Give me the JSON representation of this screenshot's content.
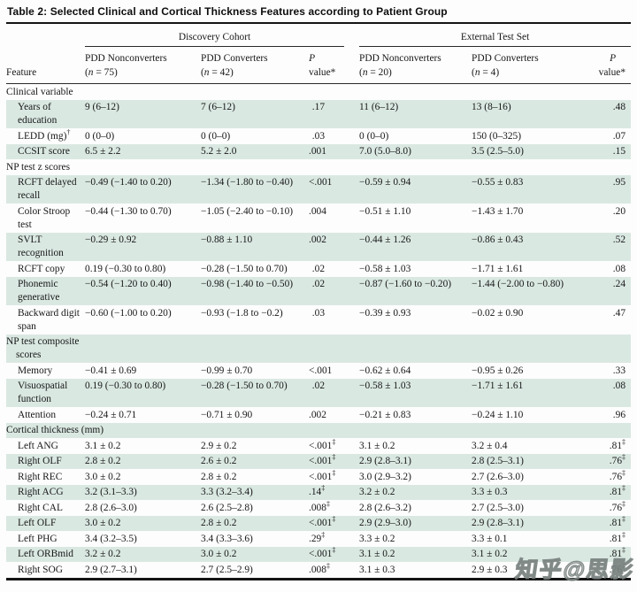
{
  "title": "Table 2: Selected Clinical and Cortical Thickness Features according to Patient Group",
  "watermark": "知乎@思影",
  "colors": {
    "row_shade": "#dae8e2",
    "rule": "#141414",
    "text": "#171717",
    "watermark_outline": "#737d7a"
  },
  "header": {
    "feature": "Feature",
    "groups": [
      "Discovery Cohort",
      "External Test Set"
    ],
    "cols": [
      {
        "name": "PDD Nonconverters",
        "pre": "(",
        "nvar": "n",
        "post": " = 75)"
      },
      {
        "name": "PDD Converters",
        "pre": "(",
        "nvar": "n",
        "post": " = 42)"
      },
      {
        "name": "PDD Nonconverters",
        "pre": "(",
        "nvar": "n",
        "post": " = 20)"
      },
      {
        "name": "PDD Converters",
        "pre": "(",
        "nvar": "n",
        "post": " = 4)"
      }
    ],
    "p": {
      "line1": "P",
      "line2": "value*"
    }
  },
  "table": {
    "rows": [
      {
        "kind": "section",
        "shaded": false,
        "label": "Clinical variable"
      },
      {
        "kind": "data",
        "shaded": true,
        "label": "Years of education",
        "cells": [
          "9 (6–12)",
          "7 (6–12)",
          ".17",
          "11 (6–12)",
          "13 (8–16)",
          ".48"
        ]
      },
      {
        "kind": "data",
        "shaded": false,
        "label": "LEDD (mg)†",
        "cells": [
          "0 (0–0)",
          "0 (0–0)",
          ".03",
          "0 (0–0)",
          "150 (0–325)",
          ".07"
        ]
      },
      {
        "kind": "data",
        "shaded": true,
        "label": "CCSIT score",
        "cells": [
          "6.5 ± 2.2",
          "5.2 ± 2.0",
          ".001",
          "7.0 (5.0–8.0)",
          "3.5 (2.5–5.0)",
          ".15"
        ]
      },
      {
        "kind": "section",
        "shaded": false,
        "label": "NP test z scores"
      },
      {
        "kind": "data",
        "shaded": true,
        "label": "RCFT delayed recall",
        "cells": [
          "−0.49 (−1.40 to 0.20)",
          "−1.34 (−1.80 to −0.40)",
          "<.001",
          "−0.59 ± 0.94",
          "−0.55 ± 0.83",
          ".95"
        ]
      },
      {
        "kind": "data",
        "shaded": false,
        "label": "Color Stroop test",
        "cells": [
          "−0.44 (−1.30 to 0.70)",
          "−1.05 (−2.40 to −0.10)",
          ".004",
          "−0.51 ± 1.10",
          "−1.43 ± 1.70",
          ".20"
        ]
      },
      {
        "kind": "data",
        "shaded": true,
        "label": "SVLT recognition",
        "cells": [
          "−0.29 ± 0.92",
          "−0.88 ± 1.10",
          ".002",
          "−0.44 ± 1.26",
          "−0.86 ± 0.43",
          ".52"
        ]
      },
      {
        "kind": "data",
        "shaded": false,
        "label": "RCFT copy",
        "cells": [
          "0.19 (−0.30 to 0.80)",
          "−0.28 (−1.50 to 0.70)",
          ".02",
          "−0.58 ± 1.03",
          "−1.71 ± 1.61",
          ".08"
        ]
      },
      {
        "kind": "data",
        "shaded": true,
        "label": "Phonemic generative",
        "cells": [
          "−0.54 (−1.20 to 0.40)",
          "−0.98 (−1.40 to −0.50)",
          ".02",
          "−0.87 (−1.60 to −0.20)",
          "−1.44 (−2.00 to −0.80)",
          ".24"
        ]
      },
      {
        "kind": "data",
        "shaded": false,
        "label": "Backward digit span",
        "cells": [
          "−0.60 (−1.00 to 0.20)",
          "−0.93 (−1.8 to −0.2)",
          ".03",
          "−0.39 ± 0.93",
          "−0.02 ± 0.90",
          ".47"
        ]
      },
      {
        "kind": "section",
        "shaded": true,
        "label": "NP test composite scores"
      },
      {
        "kind": "data",
        "shaded": false,
        "label": "Memory",
        "cells": [
          "−0.41 ± 0.69",
          "−0.99 ± 0.70",
          "<.001",
          "−0.62 ± 0.64",
          "−0.95 ± 0.26",
          ".33"
        ]
      },
      {
        "kind": "data",
        "shaded": true,
        "label": "Visuospatial function",
        "cells": [
          "0.19 (−0.30 to 0.80)",
          "−0.28 (−1.50 to 0.70)",
          ".02",
          "−0.58 ± 1.03",
          "−1.71 ± 1.61",
          ".08"
        ]
      },
      {
        "kind": "data",
        "shaded": false,
        "label": "Attention",
        "cells": [
          "−0.24 ± 0.71",
          "−0.71 ± 0.90",
          ".002",
          "−0.21 ± 0.83",
          "−0.24 ± 1.10",
          ".96"
        ]
      },
      {
        "kind": "section",
        "shaded": true,
        "label": "Cortical thickness (mm)"
      },
      {
        "kind": "data",
        "shaded": false,
        "label": "Left ANG",
        "cells": [
          "3.1 ± 0.2",
          "2.9 ± 0.2",
          "<.001‡",
          "3.1 ± 0.2",
          "3.2 ± 0.4",
          ".81‡"
        ]
      },
      {
        "kind": "data",
        "shaded": true,
        "label": "Right OLF",
        "cells": [
          "2.8 ± 0.2",
          "2.6 ± 0.2",
          "<.001‡",
          "2.9 (2.8–3.1)",
          "2.8 (2.5–3.1)",
          ".76‡"
        ]
      },
      {
        "kind": "data",
        "shaded": false,
        "label": "Right REC",
        "cells": [
          "3.0 ± 0.2",
          "2.8 ± 0.2",
          "<.001‡",
          "3.0 (2.9–3.2)",
          "2.7 (2.6–3.0)",
          ".76‡"
        ]
      },
      {
        "kind": "data",
        "shaded": true,
        "label": "Right ACG",
        "cells": [
          "3.2 (3.1–3.3)",
          "3.3 (3.2–3.4)",
          ".14‡",
          "3.2 ± 0.2",
          "3.3 ± 0.3",
          ".81‡"
        ]
      },
      {
        "kind": "data",
        "shaded": false,
        "label": "Right CAL",
        "cells": [
          "2.8 (2.6–3.0)",
          "2.6 (2.5–2.8)",
          ".008‡",
          "2.8 (2.6–3.2)",
          "2.7 (2.5–3.0)",
          ".76‡"
        ]
      },
      {
        "kind": "data",
        "shaded": true,
        "label": "Left OLF",
        "cells": [
          "3.0 ± 0.2",
          "2.8 ± 0.2",
          "<.001‡",
          "2.9 (2.9–3.0)",
          "2.9 (2.8–3.1)",
          ".81‡"
        ]
      },
      {
        "kind": "data",
        "shaded": false,
        "label": "Left PHG",
        "cells": [
          "3.4 (3.2–3.5)",
          "3.4 (3.3–3.6)",
          ".29‡",
          "3.3 ± 0.2",
          "3.3 ± 0.1",
          ".81‡"
        ]
      },
      {
        "kind": "data",
        "shaded": true,
        "label": "Left ORBmid",
        "cells": [
          "3.2 ± 0.2",
          "3.0 ± 0.2",
          "<.001‡",
          "3.1 ± 0.2",
          "3.1 ± 0.2",
          ".81‡"
        ]
      },
      {
        "kind": "data",
        "shaded": false,
        "label": "Right SOG",
        "cells": [
          "2.9 (2.7–3.1)",
          "2.7 (2.5–2.9)",
          ".008‡",
          "3.1 ± 0.3",
          "2.9 ± 0.3",
          ".76‡"
        ]
      }
    ]
  }
}
